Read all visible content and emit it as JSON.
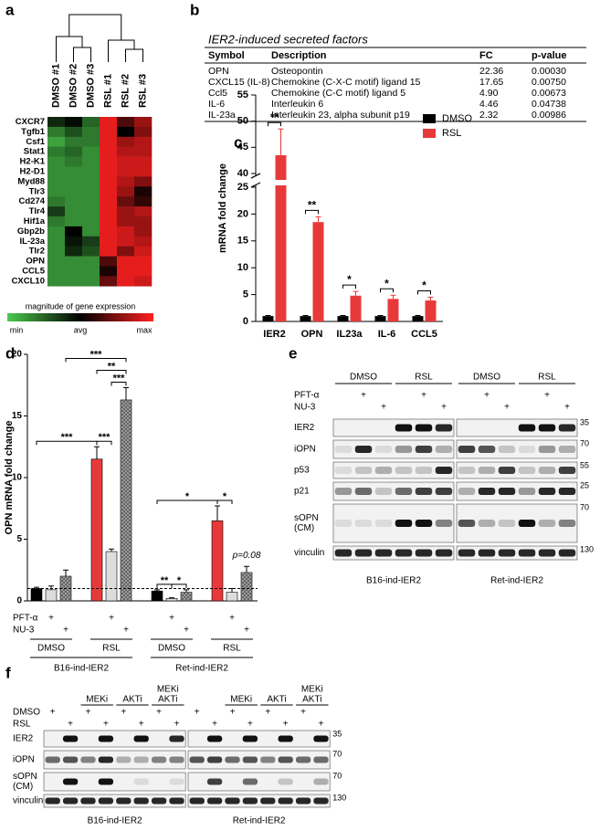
{
  "panel_labels": [
    "a",
    "b",
    "c",
    "d",
    "e",
    "f"
  ],
  "heatmap": {
    "columns": [
      "DMSO #1",
      "DMSO #2",
      "DMSO #3",
      "RSL #1",
      "RSL #2",
      "RSL #3"
    ],
    "rows": [
      "CXCR7",
      "Tgfb1",
      "Csf1",
      "Stat1",
      "H2-K1",
      "H2-D1",
      "Myd88",
      "Tlr3",
      "Cd274",
      "Tlr4",
      "Hif1a",
      "Gbp2b",
      "IL-23a",
      "Tlr2",
      "OPN",
      "CCL5",
      "CXCL10"
    ],
    "values": [
      [
        -0.2,
        -0.05,
        -0.5,
        0.9,
        0.3,
        0.6
      ],
      [
        -0.6,
        -0.4,
        -0.6,
        0.9,
        0.0,
        0.5
      ],
      [
        -0.8,
        -0.6,
        -0.6,
        0.9,
        0.6,
        0.7
      ],
      [
        -0.6,
        -0.5,
        -0.7,
        0.9,
        0.7,
        0.7
      ],
      [
        -0.7,
        -0.6,
        -0.7,
        0.9,
        0.8,
        0.8
      ],
      [
        -0.7,
        -0.7,
        -0.7,
        0.9,
        0.8,
        0.8
      ],
      [
        -0.7,
        -0.7,
        -0.7,
        0.9,
        0.7,
        0.5
      ],
      [
        -0.7,
        -0.7,
        -0.7,
        0.9,
        0.6,
        0.1
      ],
      [
        -0.6,
        -0.7,
        -0.7,
        0.9,
        0.4,
        0.2
      ],
      [
        -0.3,
        -0.7,
        -0.7,
        0.9,
        0.6,
        0.7
      ],
      [
        -0.6,
        -0.7,
        -0.7,
        0.9,
        0.6,
        0.6
      ],
      [
        -0.7,
        0.0,
        -0.7,
        0.9,
        0.8,
        0.6
      ],
      [
        -0.7,
        -0.1,
        -0.3,
        0.9,
        0.8,
        0.7
      ],
      [
        -0.7,
        -0.2,
        -0.4,
        0.9,
        0.5,
        0.8
      ],
      [
        -0.7,
        -0.7,
        -0.7,
        0.3,
        0.9,
        0.9
      ],
      [
        -0.7,
        -0.7,
        -0.7,
        0.1,
        0.9,
        0.9
      ],
      [
        -0.7,
        -0.7,
        -0.7,
        0.4,
        0.9,
        0.8
      ]
    ],
    "vlim": [
      -1,
      1
    ],
    "colors": {
      "min": "#4cc94c",
      "avg": "#000000",
      "max": "#ff2020"
    },
    "colorbar": {
      "title": "magnitude of gene expression",
      "min": "min",
      "avg": "avg",
      "max": "max"
    }
  },
  "table": {
    "title": "IER2-induced secreted factors",
    "header": [
      "Symbol",
      "Description",
      "FC",
      "p-value"
    ],
    "rows": [
      [
        "OPN",
        "Osteopontin",
        "22.36",
        "0.00030"
      ],
      [
        "CXCL15 (IL-8)",
        "Chemokine (C-X-C motif) ligand 15",
        "17.65",
        "0.00750"
      ],
      [
        "Ccl5",
        "Chemokine (C-C motif) ligand 5",
        "4.90",
        "0.00673"
      ],
      [
        "IL-6",
        "Interleukin 6",
        "4.46",
        "0.04738"
      ],
      [
        "IL-23a",
        "Interleukin 23, alpha subunit p19",
        "2.32",
        "0.00986"
      ]
    ]
  },
  "chart_data": [
    {
      "type": "bar",
      "y_label": "mRNA fold change",
      "categories": [
        "IER2",
        "OPN",
        "IL23a",
        "IL-6",
        "CCL5"
      ],
      "series": [
        {
          "name": "DMSO",
          "color": "#000000",
          "values": [
            1,
            1,
            1,
            1,
            1
          ],
          "errors": [
            0.1,
            0.1,
            0.1,
            0.1,
            0.1
          ]
        },
        {
          "name": "RSL",
          "color": "#e8393a",
          "values": [
            43.5,
            18.5,
            4.8,
            4.2,
            3.9
          ],
          "errors": [
            5,
            1,
            0.8,
            0.7,
            0.6
          ]
        }
      ],
      "ylim": [
        0,
        55
      ],
      "axis_break": [
        25,
        40
      ],
      "yticks": [
        0,
        5,
        10,
        15,
        20,
        25,
        40,
        45,
        50,
        55
      ],
      "significance": [
        "**",
        "**",
        "*",
        "*",
        "*"
      ]
    },
    {
      "type": "bar",
      "y_label": "OPN mRNA fold change",
      "categories": [
        null,
        null,
        null,
        null,
        null,
        null,
        null,
        null,
        null,
        null,
        null,
        null
      ],
      "values": [
        1,
        0.9,
        2.0,
        11.5,
        4.0,
        16.3,
        0.8,
        0.2,
        0.7,
        6.5,
        0.7,
        2.3
      ],
      "errors": [
        0.1,
        0.3,
        0.5,
        1.0,
        0.2,
        1.0,
        0.1,
        0.05,
        0.2,
        1.2,
        0.3,
        0.5
      ],
      "colors": [
        "#000000",
        "#dddddd",
        "#aaaaaa",
        "#e8393a",
        "#dddddd",
        "#aaaaaa",
        "#000000",
        "#dddddd",
        "#aaaaaa",
        "#e8393a",
        "#dddddd",
        "#aaaaaa"
      ],
      "hatched": [
        false,
        false,
        true,
        false,
        false,
        true,
        false,
        false,
        true,
        false,
        false,
        true
      ],
      "ylim": [
        0,
        20
      ],
      "yticks": [
        0,
        5,
        10,
        15,
        20
      ],
      "reference_line": 1,
      "treatments": [
        {
          "label": "PFT-α",
          "symbol": "+",
          "applied": [
            false,
            true,
            false,
            false,
            true,
            false,
            false,
            true,
            false,
            false,
            true,
            false
          ]
        },
        {
          "label": "NU-3",
          "symbol": "+",
          "applied": [
            false,
            false,
            true,
            false,
            false,
            true,
            false,
            false,
            true,
            false,
            false,
            true
          ]
        }
      ],
      "conditions": [
        "DMSO",
        "RSL",
        "DMSO",
        "RSL"
      ],
      "cell_lines": [
        "B16-ind-IER2",
        "Ret-ind-IER2"
      ],
      "brackets": [
        {
          "from": 0,
          "to": 3,
          "label": "***"
        },
        {
          "from": 3,
          "to": 4,
          "label": "***"
        },
        {
          "from": 4,
          "to": 5,
          "label": "***"
        },
        {
          "from": 3,
          "to": 5,
          "label": "**"
        },
        {
          "from": 2,
          "to": 5,
          "label": "***"
        },
        {
          "from": 6,
          "to": 7,
          "label": "**"
        },
        {
          "from": 7,
          "to": 8,
          "label": "*"
        },
        {
          "from": 6,
          "to": 9,
          "label": "*"
        },
        {
          "from": 9,
          "to": 10,
          "label": "*"
        }
      ],
      "annotations": [
        {
          "bar": 11,
          "label": "p=0.08"
        }
      ]
    }
  ],
  "blot_e": {
    "groups": [
      "DMSO",
      "RSL",
      "DMSO",
      "RSL"
    ],
    "treatments": [
      {
        "label": "PFT-α",
        "symbol": "+",
        "applied": [
          false,
          true,
          false,
          false,
          true,
          false,
          false,
          true,
          false,
          false,
          true,
          false
        ]
      },
      {
        "label": "NU-3",
        "symbol": "+",
        "applied": [
          false,
          false,
          true,
          false,
          false,
          true,
          false,
          false,
          true,
          false,
          false,
          true
        ]
      }
    ],
    "proteins": [
      {
        "label": [
          "IER2"
        ],
        "marker": 35
      },
      {
        "label": [
          "iOPN"
        ],
        "marker": 70
      },
      {
        "label": [
          "p53"
        ],
        "marker": 55
      },
      {
        "label": [
          "p21"
        ],
        "marker": 25
      },
      {
        "label": [
          "sOPN",
          "(CM)"
        ],
        "marker": 70
      },
      {
        "label": [
          "vinculin"
        ],
        "marker": 130
      }
    ],
    "cell_lines": [
      "B16-ind-IER2",
      "Ret-ind-IER2"
    ]
  },
  "blot_f": {
    "inhibitors": [
      null,
      [
        "MEKi"
      ],
      [
        "AKTi"
      ],
      [
        "MEKi",
        "AKTi"
      ]
    ],
    "treatments": [
      {
        "label": "DMSO",
        "symbol": "+",
        "applied": [
          true,
          false,
          true,
          false,
          true,
          false,
          true,
          false,
          true,
          false,
          true,
          false,
          true,
          false,
          true,
          false
        ]
      },
      {
        "label": "RSL",
        "symbol": "+",
        "applied": [
          false,
          true,
          false,
          true,
          false,
          true,
          false,
          true,
          false,
          true,
          false,
          true,
          false,
          true,
          false,
          true
        ]
      }
    ],
    "proteins": [
      {
        "label": [
          "IER2"
        ],
        "marker": 35
      },
      {
        "label": [
          "iOPN"
        ],
        "marker": 70
      },
      {
        "label": [
          "sOPN",
          "(CM)"
        ],
        "marker": 70
      },
      {
        "label": [
          "vinculin"
        ],
        "marker": 130
      }
    ],
    "cell_lines": [
      "B16-ind-IER2",
      "Ret-ind-IER2"
    ]
  }
}
